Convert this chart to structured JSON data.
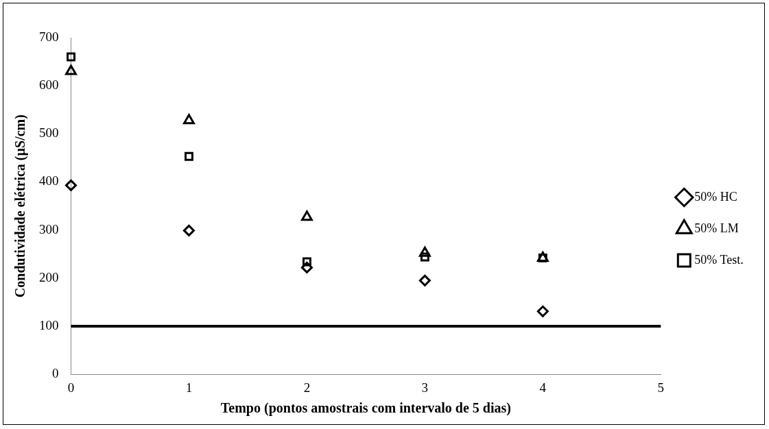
{
  "chart_data": {
    "type": "scatter",
    "xlabel": "Tempo (pontos amostrais com intervalo de 5 dias)",
    "ylabel": "Condutividade elétrica (µS/cm)",
    "x": [
      0,
      1,
      2,
      3,
      4
    ],
    "series": [
      {
        "name": "50% HC",
        "color": "#000000",
        "marker": "diamond",
        "values": [
          393,
          299,
          222,
          195,
          131
        ]
      },
      {
        "name": "50% LM",
        "color": "#000000",
        "marker": "triangle",
        "values": [
          630,
          528,
          327,
          252,
          242
        ]
      },
      {
        "name": "50% Test.",
        "color": "#000000",
        "marker": "square",
        "values": [
          660,
          453,
          234,
          244,
          242
        ]
      }
    ],
    "xlim": [
      0,
      5
    ],
    "xticks": [
      0,
      1,
      2,
      3,
      4,
      5
    ],
    "ylim": [
      0,
      700
    ],
    "yticks": [
      0,
      100,
      200,
      300,
      400,
      500,
      600,
      700
    ],
    "ref_lines": [
      {
        "axis": "y",
        "value": 100,
        "color": "#000000",
        "line_style": "solid"
      }
    ],
    "grid": false,
    "legend": "right"
  }
}
